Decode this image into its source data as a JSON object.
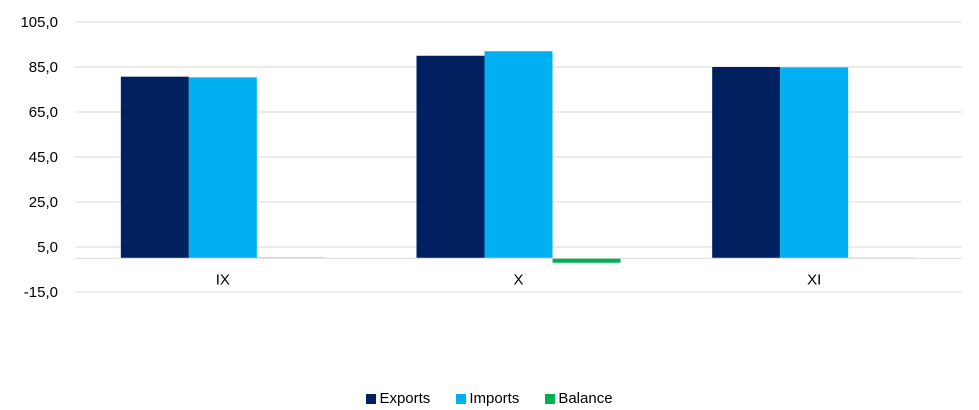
{
  "chart_data": {
    "type": "bar",
    "categories": [
      "IX",
      "X",
      "XI"
    ],
    "series": [
      {
        "name": "Exports",
        "color": "#002060",
        "values": [
          80.7,
          90.0,
          85.0
        ]
      },
      {
        "name": "Imports",
        "color": "#00B0F0",
        "values": [
          80.4,
          92.0,
          84.8
        ]
      },
      {
        "name": "Balance",
        "color": "#00B050",
        "values": [
          0.3,
          -2.0,
          0.2
        ]
      }
    ],
    "y_ticks": [
      "105,0",
      "85,0",
      "65,0",
      "45,0",
      "25,0",
      "5,0",
      "-15,0"
    ],
    "ylim": [
      -15,
      105
    ],
    "grid": true,
    "legend_position": "bottom"
  }
}
